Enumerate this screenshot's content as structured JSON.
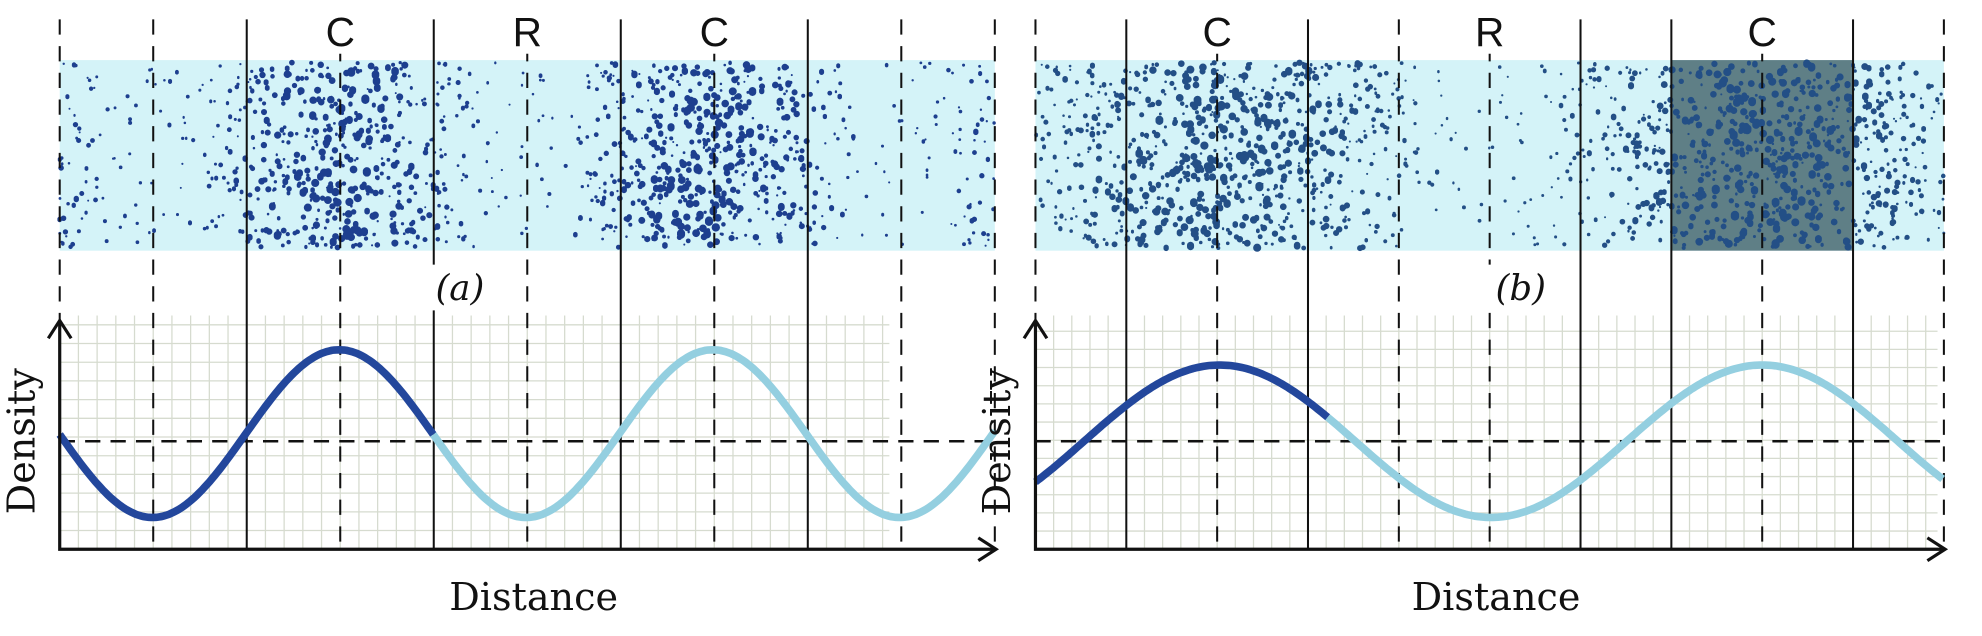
{
  "panels": [
    {
      "region_labels": [
        "C",
        "R",
        "C"
      ],
      "caption": "(a)",
      "y_label": "Density",
      "x_label": "Distance"
    },
    {
      "region_labels": [
        "C",
        "R",
        "C"
      ],
      "caption": "(b)",
      "y_label": "Density",
      "x_label": "Distance"
    }
  ]
}
